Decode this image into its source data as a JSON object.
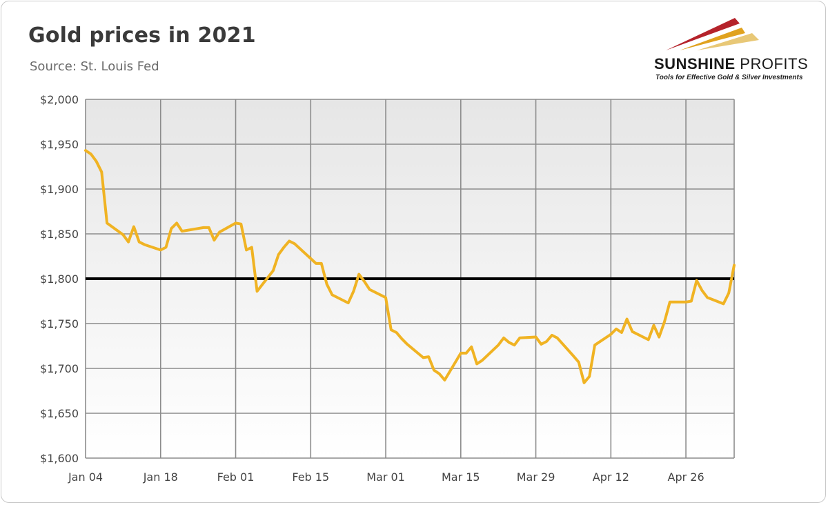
{
  "title": "Gold prices in 2021",
  "subtitle": "Source: St. Louis Fed",
  "logo": {
    "name_bold": "SUNSHINE",
    "name_thin": " PROFITS",
    "tagline": "Tools for Effective Gold & Silver Investments"
  },
  "colors": {
    "series": "#f0b323",
    "reference_line": "#000000",
    "grid": "#8c8c8c",
    "plot_bg_top": "#e6e6e6",
    "plot_bg_bottom": "#ffffff"
  },
  "chart_data": {
    "type": "line",
    "title": "Gold prices in 2021",
    "subtitle": "Source: St. Louis Fed",
    "xlabel": "",
    "ylabel": "",
    "x_start": "2021-01-04",
    "x_end": "2021-05-05",
    "xticks": [
      {
        "date": "2021-01-04",
        "label": "Jan 04"
      },
      {
        "date": "2021-01-18",
        "label": "Jan 18"
      },
      {
        "date": "2021-02-01",
        "label": "Feb 01"
      },
      {
        "date": "2021-02-15",
        "label": "Feb 15"
      },
      {
        "date": "2021-03-01",
        "label": "Mar 01"
      },
      {
        "date": "2021-03-15",
        "label": "Mar 15"
      },
      {
        "date": "2021-03-29",
        "label": "Mar 29"
      },
      {
        "date": "2021-04-12",
        "label": "Apr 12"
      },
      {
        "date": "2021-04-26",
        "label": "Apr 26"
      }
    ],
    "ylim": [
      1600,
      2000
    ],
    "yticks": [
      1600,
      1650,
      1700,
      1750,
      1800,
      1850,
      1900,
      1950,
      2000
    ],
    "ytick_labels": [
      "$1,600",
      "$1,650",
      "$1,700",
      "$1,750",
      "$1,800",
      "$1,850",
      "$1,900",
      "$1,950",
      "$2,000"
    ],
    "grid": true,
    "legend": "none",
    "reference_line": {
      "y": 1800
    },
    "series": [
      {
        "points": [
          [
            "2021-01-04",
            1943
          ],
          [
            "2021-01-05",
            1939
          ],
          [
            "2021-01-06",
            1931
          ],
          [
            "2021-01-07",
            1919
          ],
          [
            "2021-01-08",
            1862
          ],
          [
            "2021-01-11",
            1849
          ],
          [
            "2021-01-12",
            1841
          ],
          [
            "2021-01-13",
            1858
          ],
          [
            "2021-01-14",
            1841
          ],
          [
            "2021-01-15",
            1838
          ],
          [
            "2021-01-18",
            1832
          ],
          [
            "2021-01-19",
            1835
          ],
          [
            "2021-01-20",
            1856
          ],
          [
            "2021-01-21",
            1862
          ],
          [
            "2021-01-22",
            1853
          ],
          [
            "2021-01-25",
            1856
          ],
          [
            "2021-01-26",
            1857
          ],
          [
            "2021-01-27",
            1857
          ],
          [
            "2021-01-28",
            1843
          ],
          [
            "2021-01-29",
            1852
          ],
          [
            "2021-02-01",
            1862
          ],
          [
            "2021-02-02",
            1861
          ],
          [
            "2021-02-03",
            1832
          ],
          [
            "2021-02-04",
            1835
          ],
          [
            "2021-02-05",
            1786
          ],
          [
            "2021-02-08",
            1809
          ],
          [
            "2021-02-09",
            1827
          ],
          [
            "2021-02-10",
            1835
          ],
          [
            "2021-02-11",
            1842
          ],
          [
            "2021-02-12",
            1839
          ],
          [
            "2021-02-16",
            1817
          ],
          [
            "2021-02-17",
            1817
          ],
          [
            "2021-02-18",
            1794
          ],
          [
            "2021-02-19",
            1782
          ],
          [
            "2021-02-22",
            1773
          ],
          [
            "2021-02-23",
            1786
          ],
          [
            "2021-02-24",
            1805
          ],
          [
            "2021-02-25",
            1797
          ],
          [
            "2021-02-26",
            1788
          ],
          [
            "2021-03-01",
            1779
          ],
          [
            "2021-03-02",
            1743
          ],
          [
            "2021-03-03",
            1740
          ],
          [
            "2021-03-04",
            1733
          ],
          [
            "2021-03-05",
            1727
          ],
          [
            "2021-03-08",
            1712
          ],
          [
            "2021-03-09",
            1713
          ],
          [
            "2021-03-10",
            1698
          ],
          [
            "2021-03-11",
            1694
          ],
          [
            "2021-03-12",
            1687
          ],
          [
            "2021-03-15",
            1717
          ],
          [
            "2021-03-16",
            1717
          ],
          [
            "2021-03-17",
            1724
          ],
          [
            "2021-03-18",
            1705
          ],
          [
            "2021-03-19",
            1709
          ],
          [
            "2021-03-22",
            1726
          ],
          [
            "2021-03-23",
            1734
          ],
          [
            "2021-03-24",
            1729
          ],
          [
            "2021-03-25",
            1726
          ],
          [
            "2021-03-26",
            1734
          ],
          [
            "2021-03-29",
            1735
          ],
          [
            "2021-03-30",
            1727
          ],
          [
            "2021-03-31",
            1730
          ],
          [
            "2021-04-01",
            1737
          ],
          [
            "2021-04-02",
            1734
          ],
          [
            "2021-04-05",
            1714
          ],
          [
            "2021-04-06",
            1707
          ],
          [
            "2021-04-07",
            1684
          ],
          [
            "2021-04-08",
            1691
          ],
          [
            "2021-04-09",
            1726
          ],
          [
            "2021-04-12",
            1738
          ],
          [
            "2021-04-13",
            1744
          ],
          [
            "2021-04-14",
            1740
          ],
          [
            "2021-04-15",
            1755
          ],
          [
            "2021-04-16",
            1741
          ],
          [
            "2021-04-19",
            1732
          ],
          [
            "2021-04-20",
            1748
          ],
          [
            "2021-04-21",
            1735
          ],
          [
            "2021-04-22",
            1752
          ],
          [
            "2021-04-23",
            1774
          ],
          [
            "2021-04-26",
            1774
          ],
          [
            "2021-04-27",
            1775
          ],
          [
            "2021-04-28",
            1798
          ],
          [
            "2021-04-29",
            1787
          ],
          [
            "2021-04-30",
            1779
          ],
          [
            "2021-05-03",
            1772
          ],
          [
            "2021-05-04",
            1784
          ],
          [
            "2021-05-05",
            1815
          ]
        ]
      }
    ]
  }
}
